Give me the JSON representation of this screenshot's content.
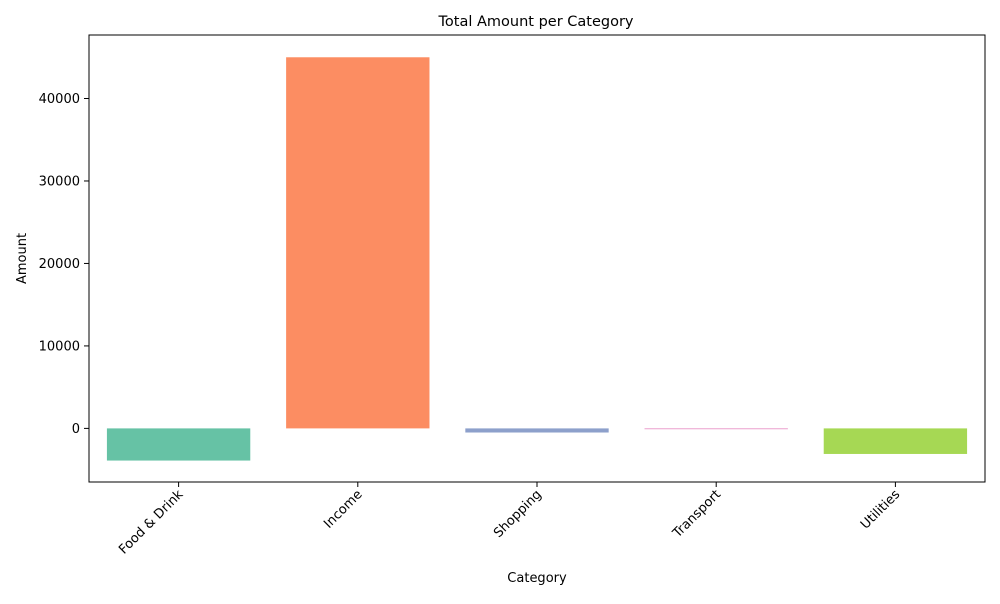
{
  "chart_data": {
    "type": "bar",
    "title": "Total Amount per Category",
    "xlabel": "Category",
    "ylabel": "Amount",
    "categories": [
      "Food & Drink",
      "Income",
      "Shopping",
      "Transport",
      "Utilities"
    ],
    "values": [
      -3900,
      45000,
      -500,
      -100,
      -3100
    ],
    "colors": [
      "#66c2a5",
      "#fc8d62",
      "#8da0cb",
      "#e78ac3",
      "#a6d854"
    ],
    "ylim": [
      -6500,
      47700
    ],
    "yticks": [
      0,
      10000,
      20000,
      30000,
      40000
    ],
    "ytick_labels": [
      "0",
      "10000",
      "20000",
      "30000",
      "40000"
    ],
    "xtick_rotation_deg": 45,
    "grid": false,
    "legend": "none"
  }
}
